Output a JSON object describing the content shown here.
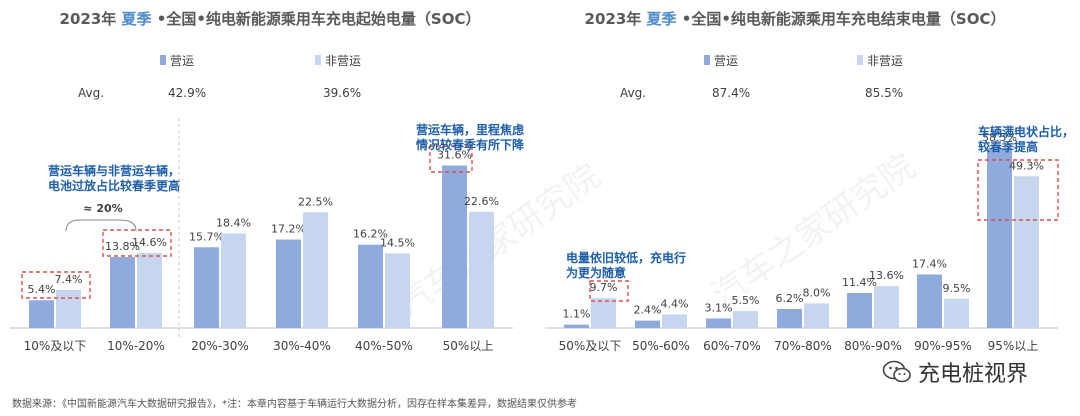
{
  "chart_data": [
    {
      "type": "bar",
      "title_prefix": "2023年",
      "title_season": "夏季",
      "title_rest": "•全国•纯电新能源乘用车充电起始电量（SOC）",
      "categories": [
        "10%及以下",
        "10%-20%",
        "20%-30%",
        "30%-40%",
        "40%-50%",
        "50%以上"
      ],
      "series": [
        {
          "name": "营运",
          "values": [
            5.4,
            13.8,
            15.7,
            17.2,
            16.2,
            31.6
          ],
          "avg": "42.9%",
          "color": "#8faadc"
        },
        {
          "name": "非营运",
          "values": [
            7.4,
            14.6,
            18.4,
            22.5,
            14.5,
            22.6
          ],
          "avg": "39.6%",
          "color": "#c5d6ee"
        }
      ],
      "value_labels": [
        [
          "5.4%",
          "13.8%",
          "15.7%",
          "17.2%",
          "16.2%",
          "31.6%"
        ],
        [
          "7.4%",
          "14.6%",
          "18.4%",
          "22.5%",
          "14.5%",
          "22.6%"
        ]
      ],
      "avg_label": "Avg.",
      "ylim": [
        0,
        35
      ],
      "xlabel": "",
      "ylabel": "",
      "annotations": [
        {
          "text": [
            "营运车辆与非营运车辆，",
            "电池过放占比较春季更高"
          ]
        },
        {
          "text": [
            "营运车辆，里程焦虑",
            "情况较春季有所下降"
          ]
        }
      ],
      "bracket_label": "≈ 20%"
    },
    {
      "type": "bar",
      "title_prefix": "2023年",
      "title_season": "夏季",
      "title_rest": "•全国•纯电新能源乘用车充电结束电量（SOC）",
      "categories": [
        "50%及以下",
        "50%-60%",
        "60%-70%",
        "70%-80%",
        "80%-90%",
        "90%-95%",
        "95%以上"
      ],
      "series": [
        {
          "name": "营运",
          "values": [
            1.1,
            2.4,
            3.1,
            6.2,
            11.4,
            17.4,
            58.5
          ],
          "avg": "87.4%",
          "color": "#8faadc"
        },
        {
          "name": "非营运",
          "values": [
            9.7,
            4.4,
            5.5,
            8.0,
            13.6,
            9.5,
            49.3
          ],
          "avg": "85.5%",
          "color": "#c5d6ee"
        }
      ],
      "value_labels": [
        [
          "1.1%",
          "2.4%",
          "3.1%",
          "6.2%",
          "11.4%",
          "17.4%",
          "58.5%"
        ],
        [
          "9.7%",
          "4.4%",
          "5.5%",
          "8.0%",
          "13.6%",
          "9.5%",
          "49.3%"
        ]
      ],
      "avg_label": "Avg.",
      "ylim": [
        0,
        65
      ],
      "xlabel": "",
      "ylabel": "",
      "annotations": [
        {
          "text": [
            "电量依旧较低，充电行",
            "为更为随意"
          ]
        },
        {
          "text": [
            "车辆满电状占比，",
            "较春季提高"
          ]
        }
      ]
    }
  ],
  "footer": "数据来源：《中国新能源汽车大数据研究报告》，*注：本章内容基于车辆运行大数据分析，因存在样本集差异，数据结果仅供参考",
  "watermark": "汽车之家研究院",
  "brand": {
    "name": "充电桩视界",
    "icon": "wechat-icon"
  },
  "colors": {
    "title": "#595959",
    "season": "#4f8ccb",
    "annotation": "#1f5fa8",
    "highlight_box": "#d9534f",
    "axis": "#bfbfbf",
    "label": "#404040"
  }
}
